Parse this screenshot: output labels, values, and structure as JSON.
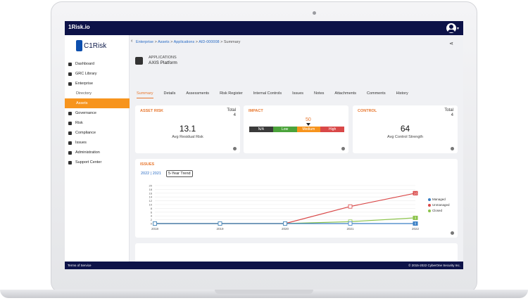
{
  "app": {
    "brand": "1Risk.io",
    "logo_text": "C1Risk"
  },
  "sidebar": {
    "items": [
      {
        "label": "Dashboard",
        "icon": "dashboard-icon"
      },
      {
        "label": "GRC Library",
        "icon": "library-icon"
      },
      {
        "label": "Enterprise",
        "icon": "globe-icon"
      },
      {
        "label": "Directory",
        "icon": ""
      },
      {
        "label": "Assets",
        "icon": ""
      },
      {
        "label": "Governance",
        "icon": "governance-icon"
      },
      {
        "label": "Risk",
        "icon": "risk-icon"
      },
      {
        "label": "Compliance",
        "icon": "compliance-icon"
      },
      {
        "label": "Issues",
        "icon": "flag-icon"
      },
      {
        "label": "Administration",
        "icon": "gear-icon"
      },
      {
        "label": "Support Center",
        "icon": "help-icon"
      }
    ]
  },
  "breadcrumb": {
    "items": [
      "Enterprise",
      "Assets",
      "Applications",
      "AID-000008",
      "Summary"
    ],
    "separator": ">"
  },
  "header": {
    "category": "APPLICATIONS",
    "name": "AXIS Platform"
  },
  "tabs": [
    "Summary",
    "Details",
    "Assessments",
    "Risk Register",
    "Internal Controls",
    "Issues",
    "Notes",
    "Attachments",
    "Comments",
    "History"
  ],
  "cards": {
    "asset_risk": {
      "title": "ASSET RISK",
      "total_label": "Total",
      "total_value": "4",
      "value": "13.1",
      "caption": "Avg Residual Risk"
    },
    "impact": {
      "title": "IMPACT",
      "value": "50",
      "levels": [
        "N/A",
        "Low",
        "Medium",
        "High"
      ],
      "level_colors": [
        "#3a3a3a",
        "#4ba33b",
        "#f7941d",
        "#d94848"
      ],
      "selected": "Medium"
    },
    "control": {
      "title": "CONTROL",
      "total_label": "Total",
      "total_value": "4",
      "value": "64",
      "caption": "Avg Control Strength"
    }
  },
  "issues": {
    "title": "ISSUES",
    "years": [
      "2022",
      "2021"
    ],
    "year_sep": "|",
    "trend_label": "5-Year Trend"
  },
  "chart_data": {
    "type": "line",
    "x": [
      "2018",
      "2019",
      "2020",
      "2021",
      "2022"
    ],
    "ylim": [
      0,
      20
    ],
    "yticks": [
      0,
      2,
      4,
      6,
      8,
      10,
      12,
      14,
      16,
      18,
      20
    ],
    "legend": "right",
    "series": [
      {
        "name": "Managed",
        "color": "#3a7fc4",
        "values": [
          0,
          0,
          0,
          0,
          0
        ]
      },
      {
        "name": "Unmanaged",
        "color": "#d94848",
        "values": [
          0,
          0,
          0,
          9,
          16
        ]
      },
      {
        "name": "Closed",
        "color": "#8bc34a",
        "values": [
          0,
          0,
          0,
          1,
          3
        ]
      }
    ],
    "point_labels": [
      {
        "series": "Unmanaged",
        "index": 4,
        "text": "16"
      },
      {
        "series": "Closed",
        "index": 4,
        "text": "3"
      },
      {
        "series": "Managed",
        "index": 4,
        "text": "0"
      }
    ]
  },
  "footer": {
    "left": "Terms of Service",
    "right": "© 2015-2022 CyberOne Security Inc."
  }
}
